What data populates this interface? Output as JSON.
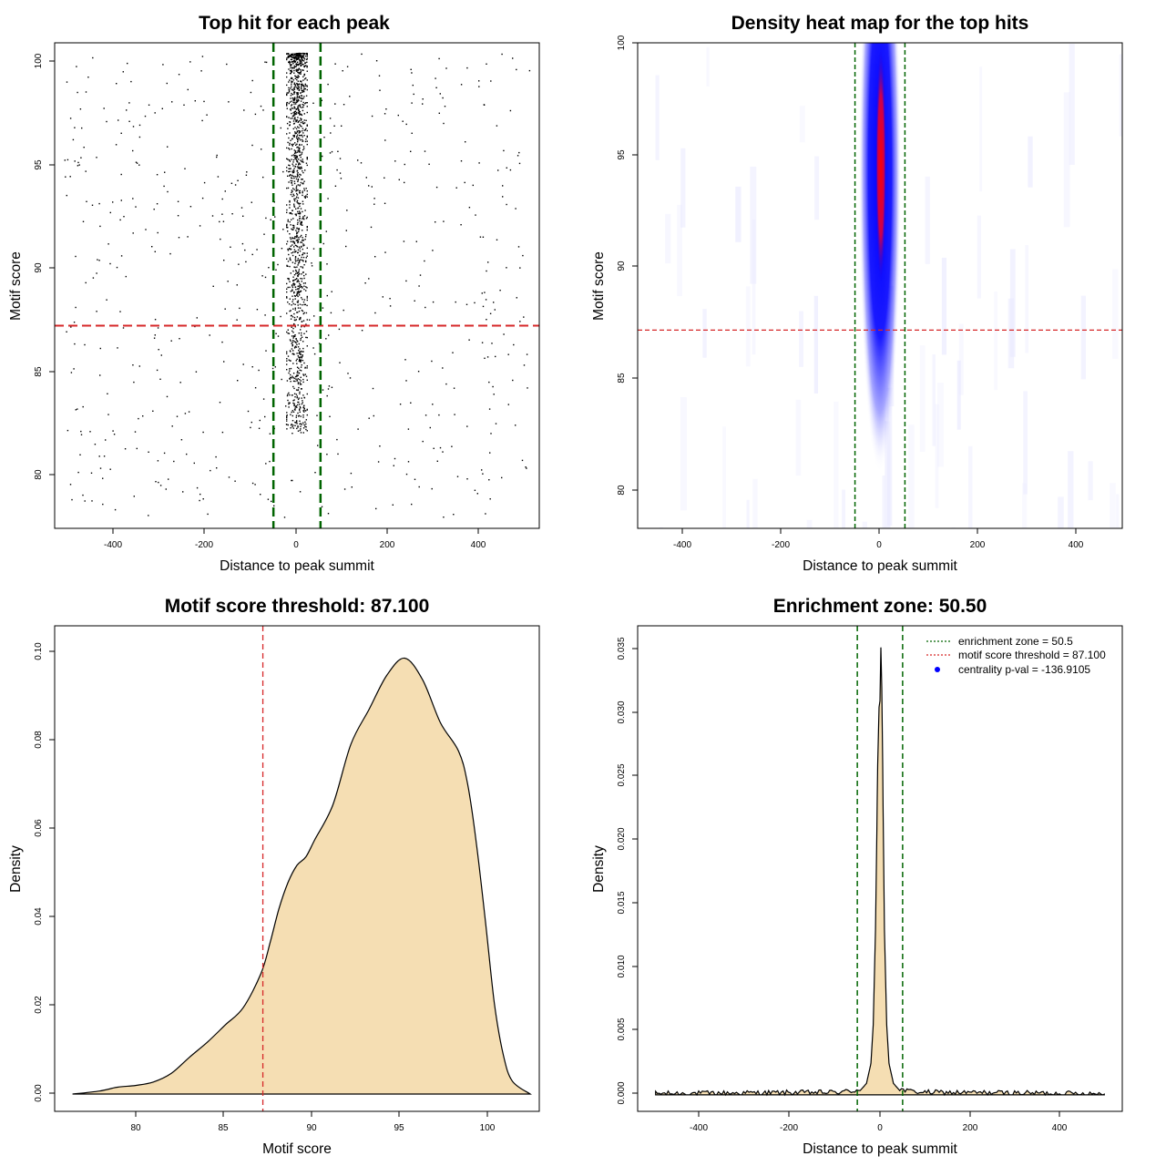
{
  "chart_data": [
    {
      "id": "scatter",
      "type": "scatter",
      "title": "Top hit for each peak",
      "xlabel": "Distance to peak summit",
      "ylabel": "Motif score",
      "xlim": [
        -520,
        520
      ],
      "ylim": [
        77.5,
        100.5
      ],
      "xticks": [
        -400,
        -200,
        0,
        200,
        400
      ],
      "yticks": [
        80,
        85,
        90,
        95,
        100
      ],
      "xtick_labels": [
        "-400",
        "-200",
        "0",
        "200",
        "400"
      ],
      "ytick_labels": [
        "80",
        "85",
        "90",
        "95",
        "100"
      ],
      "threshold_line": {
        "y": 87.1,
        "color": "#d62728",
        "style": "dashed"
      },
      "zone_lines": {
        "x": [
          -50.5,
          50.5
        ],
        "color": "#006400",
        "style": "dashed"
      },
      "central_cluster": {
        "x_range": [
          -22,
          22
        ],
        "y_range": [
          82,
          100
        ],
        "approx_points": 1400
      },
      "background_points": {
        "x_range": [
          -500,
          500
        ],
        "y_range": [
          78,
          100
        ],
        "approx_points": 600
      },
      "point_color": "#000000"
    },
    {
      "id": "heatmap",
      "type": "heatmap",
      "title": "Density heat map for the top hits",
      "xlabel": "Distance to peak summit",
      "ylabel": "Motif score",
      "xlim": [
        -490,
        490
      ],
      "ylim": [
        78.2,
        100
      ],
      "xticks": [
        -400,
        -200,
        0,
        200,
        400
      ],
      "yticks": [
        80,
        85,
        90,
        95,
        100
      ],
      "xtick_labels": [
        "-400",
        "-200",
        "0",
        "200",
        "400"
      ],
      "ytick_labels": [
        "80",
        "85",
        "90",
        "95",
        "100"
      ],
      "threshold_line": {
        "y": 87.1,
        "color": "#d62728",
        "style": "dashed"
      },
      "zone_lines": {
        "x": [
          -50.5,
          50.5
        ],
        "color": "#006400",
        "style": "dashed"
      },
      "density_peak": {
        "x": 0,
        "y": 94.5
      },
      "color_ramp": [
        "#ffffff",
        "#0000ff",
        "#ff0000"
      ]
    },
    {
      "id": "score_density",
      "type": "area",
      "title": "Motif score threshold: 87.100",
      "xlabel": "Motif score",
      "ylabel": "Density",
      "xlim": [
        75.5,
        102.5
      ],
      "ylim": [
        -0.004,
        0.1085
      ],
      "xticks": [
        80,
        85,
        90,
        95,
        100
      ],
      "yticks": [
        0,
        0.02,
        0.04,
        0.06,
        0.08,
        0.1
      ],
      "xtick_labels": [
        "80",
        "85",
        "90",
        "95",
        "100"
      ],
      "ytick_labels": [
        "0.00",
        "0.02",
        "0.04",
        "0.06",
        "0.08",
        "0.10"
      ],
      "x": [
        76.5,
        78,
        79,
        80,
        81,
        82,
        83,
        84,
        85,
        86,
        87,
        87.5,
        88,
        88.5,
        89,
        89.5,
        90,
        91,
        92,
        93,
        94,
        95,
        96,
        97,
        98,
        98.5,
        99,
        99.5,
        100,
        100.5,
        101,
        102
      ],
      "y": [
        0,
        0.0007,
        0.0016,
        0.002,
        0.0028,
        0.0048,
        0.0085,
        0.012,
        0.016,
        0.02,
        0.028,
        0.035,
        0.043,
        0.049,
        0.053,
        0.055,
        0.059,
        0.067,
        0.081,
        0.089,
        0.097,
        0.101,
        0.096,
        0.086,
        0.0795,
        0.072,
        0.058,
        0.04,
        0.021,
        0.009,
        0.003,
        0
      ],
      "fill_color": "#f5deb3",
      "threshold_line": {
        "x": 87.1,
        "color": "#d62728",
        "style": "dashed"
      }
    },
    {
      "id": "distance_density",
      "type": "area",
      "title": "Enrichment zone: 50.50",
      "xlabel": "Distance to peak summit",
      "ylabel": "Density",
      "xlim": [
        -540,
        540
      ],
      "ylim": [
        -0.0013,
        0.0369
      ],
      "xticks": [
        -400,
        -200,
        0,
        200,
        400
      ],
      "yticks": [
        0,
        0.005,
        0.01,
        0.015,
        0.02,
        0.025,
        0.03,
        0.035
      ],
      "xtick_labels": [
        "-400",
        "-200",
        "0",
        "200",
        "400"
      ],
      "ytick_labels": [
        "0.000",
        "0.005",
        "0.010",
        "0.015",
        "0.020",
        "0.025",
        "0.030",
        "0.035"
      ],
      "x": [
        -500,
        -100,
        -60,
        -40,
        -30,
        -20,
        -15,
        -10,
        -5,
        -2,
        0,
        2,
        4,
        6,
        10,
        15,
        20,
        30,
        40,
        60,
        100,
        500
      ],
      "y": [
        0.0001,
        0.0002,
        0.0003,
        0.0005,
        0.0009,
        0.0025,
        0.0055,
        0.013,
        0.026,
        0.0305,
        0.031,
        0.0352,
        0.032,
        0.026,
        0.013,
        0.0055,
        0.0025,
        0.0009,
        0.0005,
        0.0003,
        0.0002,
        0.0001
      ],
      "baseline_noise": 0.00025,
      "fill_color": "#f5deb3",
      "zone_lines": {
        "x": [
          -50.5,
          50.5
        ],
        "color": "#006400",
        "style": "dashed"
      },
      "legend": {
        "placement": "top-right",
        "entries": [
          {
            "label": "enrichment zone = 50.5",
            "color": "#006400",
            "symbol": "dotted-line"
          },
          {
            "label": "motif score threshold = 87.100",
            "color": "#d62728",
            "symbol": "dotted-line"
          },
          {
            "label": "centrality p-val = -136.9105",
            "color": "#0000ff",
            "symbol": "dot"
          }
        ]
      }
    }
  ]
}
